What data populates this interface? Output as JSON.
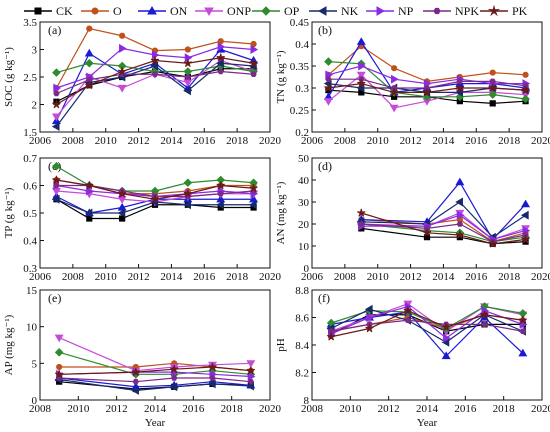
{
  "legend": [
    {
      "name": "CK",
      "color": "#000000",
      "marker": "square"
    },
    {
      "name": "O",
      "color": "#c0501c",
      "marker": "circle"
    },
    {
      "name": "ON",
      "color": "#1a1ad6",
      "marker": "triangle-up"
    },
    {
      "name": "ONP",
      "color": "#c64bd8",
      "marker": "triangle-down"
    },
    {
      "name": "OP",
      "color": "#2e8b2e",
      "marker": "diamond"
    },
    {
      "name": "NK",
      "color": "#172a6b",
      "marker": "triangle-left"
    },
    {
      "name": "NP",
      "color": "#8a2be2",
      "marker": "triangle-right"
    },
    {
      "name": "NPK",
      "color": "#7a2a8a",
      "marker": "hexagon"
    },
    {
      "name": "PK",
      "color": "#6b1a1a",
      "marker": "star"
    }
  ],
  "chart_data": [
    {
      "panel": "(a)",
      "type": "line",
      "ylabel": "SOC (g kg⁻¹)",
      "xlabel": "",
      "xlim": [
        2006,
        2020
      ],
      "ylim": [
        1.5,
        3.5
      ],
      "xticks": [
        2006,
        2008,
        2010,
        2012,
        2014,
        2016,
        2018,
        2020
      ],
      "yticks": [
        1.5,
        2.0,
        2.5,
        3.0,
        3.5
      ],
      "x": [
        2007,
        2009,
        2011,
        2013,
        2015,
        2017,
        2019
      ],
      "series": [
        {
          "name": "CK",
          "values": [
            2.05,
            2.35,
            2.5,
            2.6,
            2.5,
            2.65,
            2.65
          ]
        },
        {
          "name": "O",
          "values": [
            2.3,
            3.38,
            3.25,
            2.98,
            3.0,
            3.15,
            3.1
          ]
        },
        {
          "name": "ON",
          "values": [
            1.7,
            2.93,
            2.55,
            2.75,
            2.3,
            3.0,
            2.8
          ]
        },
        {
          "name": "ONP",
          "values": [
            1.78,
            2.5,
            2.3,
            2.55,
            2.4,
            2.8,
            2.6
          ]
        },
        {
          "name": "OP",
          "values": [
            2.58,
            2.75,
            2.7,
            2.6,
            2.6,
            2.7,
            2.6
          ]
        },
        {
          "name": "NK",
          "values": [
            1.6,
            2.4,
            2.5,
            2.7,
            2.25,
            2.75,
            2.7
          ]
        },
        {
          "name": "NP",
          "values": [
            2.3,
            2.5,
            3.02,
            2.9,
            2.85,
            3.05,
            3.0
          ]
        },
        {
          "name": "NPK",
          "values": [
            2.2,
            2.45,
            2.55,
            2.55,
            2.5,
            2.6,
            2.55
          ]
        },
        {
          "name": "PK",
          "values": [
            2.0,
            2.35,
            2.6,
            2.8,
            2.75,
            2.85,
            2.75
          ]
        }
      ]
    },
    {
      "panel": "(b)",
      "type": "line",
      "ylabel": "TN (g kg⁻¹)",
      "xlabel": "",
      "xlim": [
        2006,
        2020
      ],
      "ylim": [
        0.2,
        0.45
      ],
      "xticks": [
        2006,
        2008,
        2010,
        2012,
        2014,
        2016,
        2018,
        2020
      ],
      "yticks": [
        0.2,
        0.25,
        0.3,
        0.35,
        0.4,
        0.45
      ],
      "x": [
        2007,
        2009,
        2011,
        2013,
        2015,
        2017,
        2019
      ],
      "series": [
        {
          "name": "CK",
          "values": [
            0.295,
            0.29,
            0.28,
            0.28,
            0.27,
            0.265,
            0.27
          ]
        },
        {
          "name": "O",
          "values": [
            0.33,
            0.395,
            0.345,
            0.315,
            0.325,
            0.335,
            0.33
          ]
        },
        {
          "name": "ON",
          "values": [
            0.28,
            0.405,
            0.29,
            0.3,
            0.31,
            0.31,
            0.3
          ]
        },
        {
          "name": "ONP",
          "values": [
            0.27,
            0.33,
            0.255,
            0.27,
            0.29,
            0.29,
            0.285
          ]
        },
        {
          "name": "OP",
          "values": [
            0.36,
            0.355,
            0.29,
            0.28,
            0.28,
            0.285,
            0.275
          ]
        },
        {
          "name": "NK",
          "values": [
            0.31,
            0.3,
            0.3,
            0.29,
            0.29,
            0.3,
            0.295
          ]
        },
        {
          "name": "NP",
          "values": [
            0.33,
            0.35,
            0.32,
            0.31,
            0.32,
            0.31,
            0.31
          ]
        },
        {
          "name": "NPK",
          "values": [
            0.32,
            0.32,
            0.3,
            0.3,
            0.315,
            0.315,
            0.305
          ]
        },
        {
          "name": "PK",
          "values": [
            0.3,
            0.31,
            0.29,
            0.29,
            0.3,
            0.3,
            0.295
          ]
        }
      ]
    },
    {
      "panel": "(c)",
      "type": "line",
      "ylabel": "TP (g kg⁻¹)",
      "xlabel": "",
      "xlim": [
        2006,
        2020
      ],
      "ylim": [
        0.3,
        0.7
      ],
      "xticks": [
        2006,
        2008,
        2010,
        2012,
        2014,
        2016,
        2018,
        2020
      ],
      "yticks": [
        0.3,
        0.4,
        0.5,
        0.6,
        0.7
      ],
      "x": [
        2007,
        2009,
        2011,
        2013,
        2015,
        2017,
        2019
      ],
      "series": [
        {
          "name": "CK",
          "values": [
            0.55,
            0.48,
            0.48,
            0.53,
            0.53,
            0.52,
            0.52
          ]
        },
        {
          "name": "O",
          "values": [
            0.62,
            0.6,
            0.57,
            0.57,
            0.58,
            0.6,
            0.6
          ]
        },
        {
          "name": "ON",
          "values": [
            0.56,
            0.5,
            0.52,
            0.55,
            0.55,
            0.55,
            0.55
          ]
        },
        {
          "name": "ONP",
          "values": [
            0.58,
            0.57,
            0.55,
            0.54,
            0.56,
            0.57,
            0.57
          ]
        },
        {
          "name": "OP",
          "values": [
            0.67,
            0.6,
            0.58,
            0.58,
            0.61,
            0.62,
            0.61
          ]
        },
        {
          "name": "NK",
          "values": [
            0.55,
            0.5,
            0.5,
            0.54,
            0.53,
            0.53,
            0.53
          ]
        },
        {
          "name": "NP",
          "values": [
            0.6,
            0.58,
            0.57,
            0.56,
            0.57,
            0.58,
            0.57
          ]
        },
        {
          "name": "NPK",
          "values": [
            0.6,
            0.6,
            0.58,
            0.56,
            0.56,
            0.57,
            0.58
          ]
        },
        {
          "name": "PK",
          "values": [
            0.62,
            0.6,
            0.57,
            0.55,
            0.57,
            0.6,
            0.59
          ]
        }
      ]
    },
    {
      "panel": "(d)",
      "type": "line",
      "ylabel": "AN (mg kg⁻¹)",
      "xlabel": "",
      "xlim": [
        2006,
        2020
      ],
      "ylim": [
        0,
        50
      ],
      "xticks": [
        2006,
        2008,
        2010,
        2012,
        2014,
        2016,
        2018,
        2020
      ],
      "yticks": [
        0,
        10,
        20,
        30,
        40,
        50
      ],
      "x": [
        2009,
        2013,
        2015,
        2017,
        2019
      ],
      "series": [
        {
          "name": "CK",
          "values": [
            18,
            14,
            14,
            11,
            12
          ]
        },
        {
          "name": "O",
          "values": [
            22,
            20,
            22,
            12,
            16
          ]
        },
        {
          "name": "ON",
          "values": [
            22,
            21,
            39,
            13,
            29
          ]
        },
        {
          "name": "ONP",
          "values": [
            20,
            19,
            25,
            13,
            18
          ]
        },
        {
          "name": "OP",
          "values": [
            20,
            17,
            16,
            12,
            14
          ]
        },
        {
          "name": "NK",
          "values": [
            21,
            20,
            30,
            14,
            24
          ]
        },
        {
          "name": "NP",
          "values": [
            19,
            19,
            24,
            13,
            17
          ]
        },
        {
          "name": "NPK",
          "values": [
            20,
            18,
            20,
            12,
            15
          ]
        },
        {
          "name": "PK",
          "values": [
            25,
            16,
            15,
            11,
            13
          ]
        }
      ]
    },
    {
      "panel": "(e)",
      "type": "line",
      "ylabel": "AP (mg kg⁻¹)",
      "xlabel": "Year",
      "xlim": [
        2008,
        2020
      ],
      "ylim": [
        0,
        15
      ],
      "xticks": [
        2008,
        2010,
        2012,
        2014,
        2016,
        2018,
        2020
      ],
      "yticks": [
        0,
        5,
        10,
        15
      ],
      "x": [
        2009,
        2013,
        2015,
        2017,
        2019
      ],
      "series": [
        {
          "name": "CK",
          "values": [
            2.5,
            1.5,
            1.8,
            2.2,
            2.0
          ]
        },
        {
          "name": "O",
          "values": [
            4.5,
            4.5,
            5.0,
            4.5,
            4.0
          ]
        },
        {
          "name": "ON",
          "values": [
            3.0,
            1.8,
            2.0,
            2.5,
            2.0
          ]
        },
        {
          "name": "ONP",
          "values": [
            8.5,
            4.0,
            4.5,
            4.8,
            5.0
          ]
        },
        {
          "name": "OP",
          "values": [
            6.5,
            3.5,
            3.5,
            4.0,
            3.5
          ]
        },
        {
          "name": "NK",
          "values": [
            2.8,
            1.3,
            1.8,
            2.2,
            1.9
          ]
        },
        {
          "name": "NP",
          "values": [
            3.5,
            3.8,
            3.8,
            3.5,
            3.2
          ]
        },
        {
          "name": "NPK",
          "values": [
            3.0,
            2.5,
            3.0,
            3.0,
            2.5
          ]
        },
        {
          "name": "PK",
          "values": [
            3.5,
            3.8,
            4.2,
            4.5,
            4.0
          ]
        }
      ]
    },
    {
      "panel": "(f)",
      "type": "line",
      "ylabel": "pH",
      "xlabel": "Year",
      "xlim": [
        2008,
        2020
      ],
      "ylim": [
        8.0,
        8.8
      ],
      "xticks": [
        2008,
        2010,
        2012,
        2014,
        2016,
        2018,
        2020
      ],
      "yticks": [
        8.0,
        8.2,
        8.4,
        8.6,
        8.8
      ],
      "x": [
        2009,
        2011,
        2013,
        2015,
        2017,
        2019
      ],
      "series": [
        {
          "name": "CK",
          "values": [
            8.48,
            8.62,
            8.62,
            8.5,
            8.55,
            8.55
          ]
        },
        {
          "name": "O",
          "values": [
            8.5,
            8.55,
            8.6,
            8.52,
            8.62,
            8.58
          ]
        },
        {
          "name": "ON",
          "values": [
            8.55,
            8.6,
            8.64,
            8.32,
            8.6,
            8.34
          ]
        },
        {
          "name": "ONP",
          "values": [
            8.5,
            8.6,
            8.7,
            8.5,
            8.68,
            8.62
          ]
        },
        {
          "name": "OP",
          "values": [
            8.56,
            8.65,
            8.64,
            8.52,
            8.68,
            8.63
          ]
        },
        {
          "name": "NK",
          "values": [
            8.52,
            8.66,
            8.58,
            8.42,
            8.62,
            8.5
          ]
        },
        {
          "name": "NP",
          "values": [
            8.48,
            8.6,
            8.68,
            8.45,
            8.65,
            8.55
          ]
        },
        {
          "name": "NPK",
          "values": [
            8.5,
            8.55,
            8.58,
            8.55,
            8.55,
            8.5
          ]
        },
        {
          "name": "PK",
          "values": [
            8.46,
            8.52,
            8.65,
            8.53,
            8.62,
            8.58
          ]
        }
      ]
    }
  ]
}
